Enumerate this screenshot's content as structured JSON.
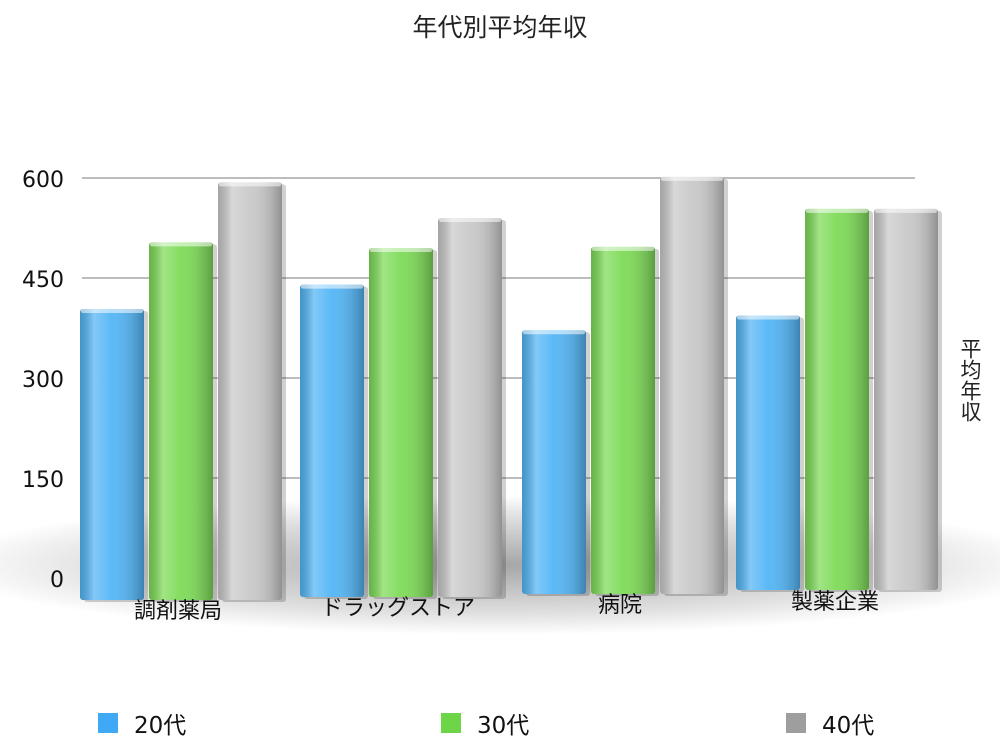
{
  "chart_data": {
    "type": "bar",
    "title": "年代別平均年収",
    "xlabel": "",
    "ylabel": "平均年収",
    "categories": [
      "調剤薬局",
      "ドラッグストア",
      "病院",
      "製薬企業"
    ],
    "series": [
      {
        "name": "20代",
        "values": [
          415,
          450,
          380,
          400
        ],
        "color": "#52B5F5"
      },
      {
        "name": "30代",
        "values": [
          515,
          505,
          505,
          560
        ],
        "color": "#7DDB57"
      },
      {
        "name": "40代",
        "values": [
          605,
          550,
          610,
          560
        ],
        "color": "#C9C9C9"
      }
    ],
    "yticks": [
      "600",
      "450",
      "300",
      "150",
      "0"
    ],
    "ylim": [
      0,
      600
    ],
    "grid": true,
    "legend_position": "bottom"
  }
}
